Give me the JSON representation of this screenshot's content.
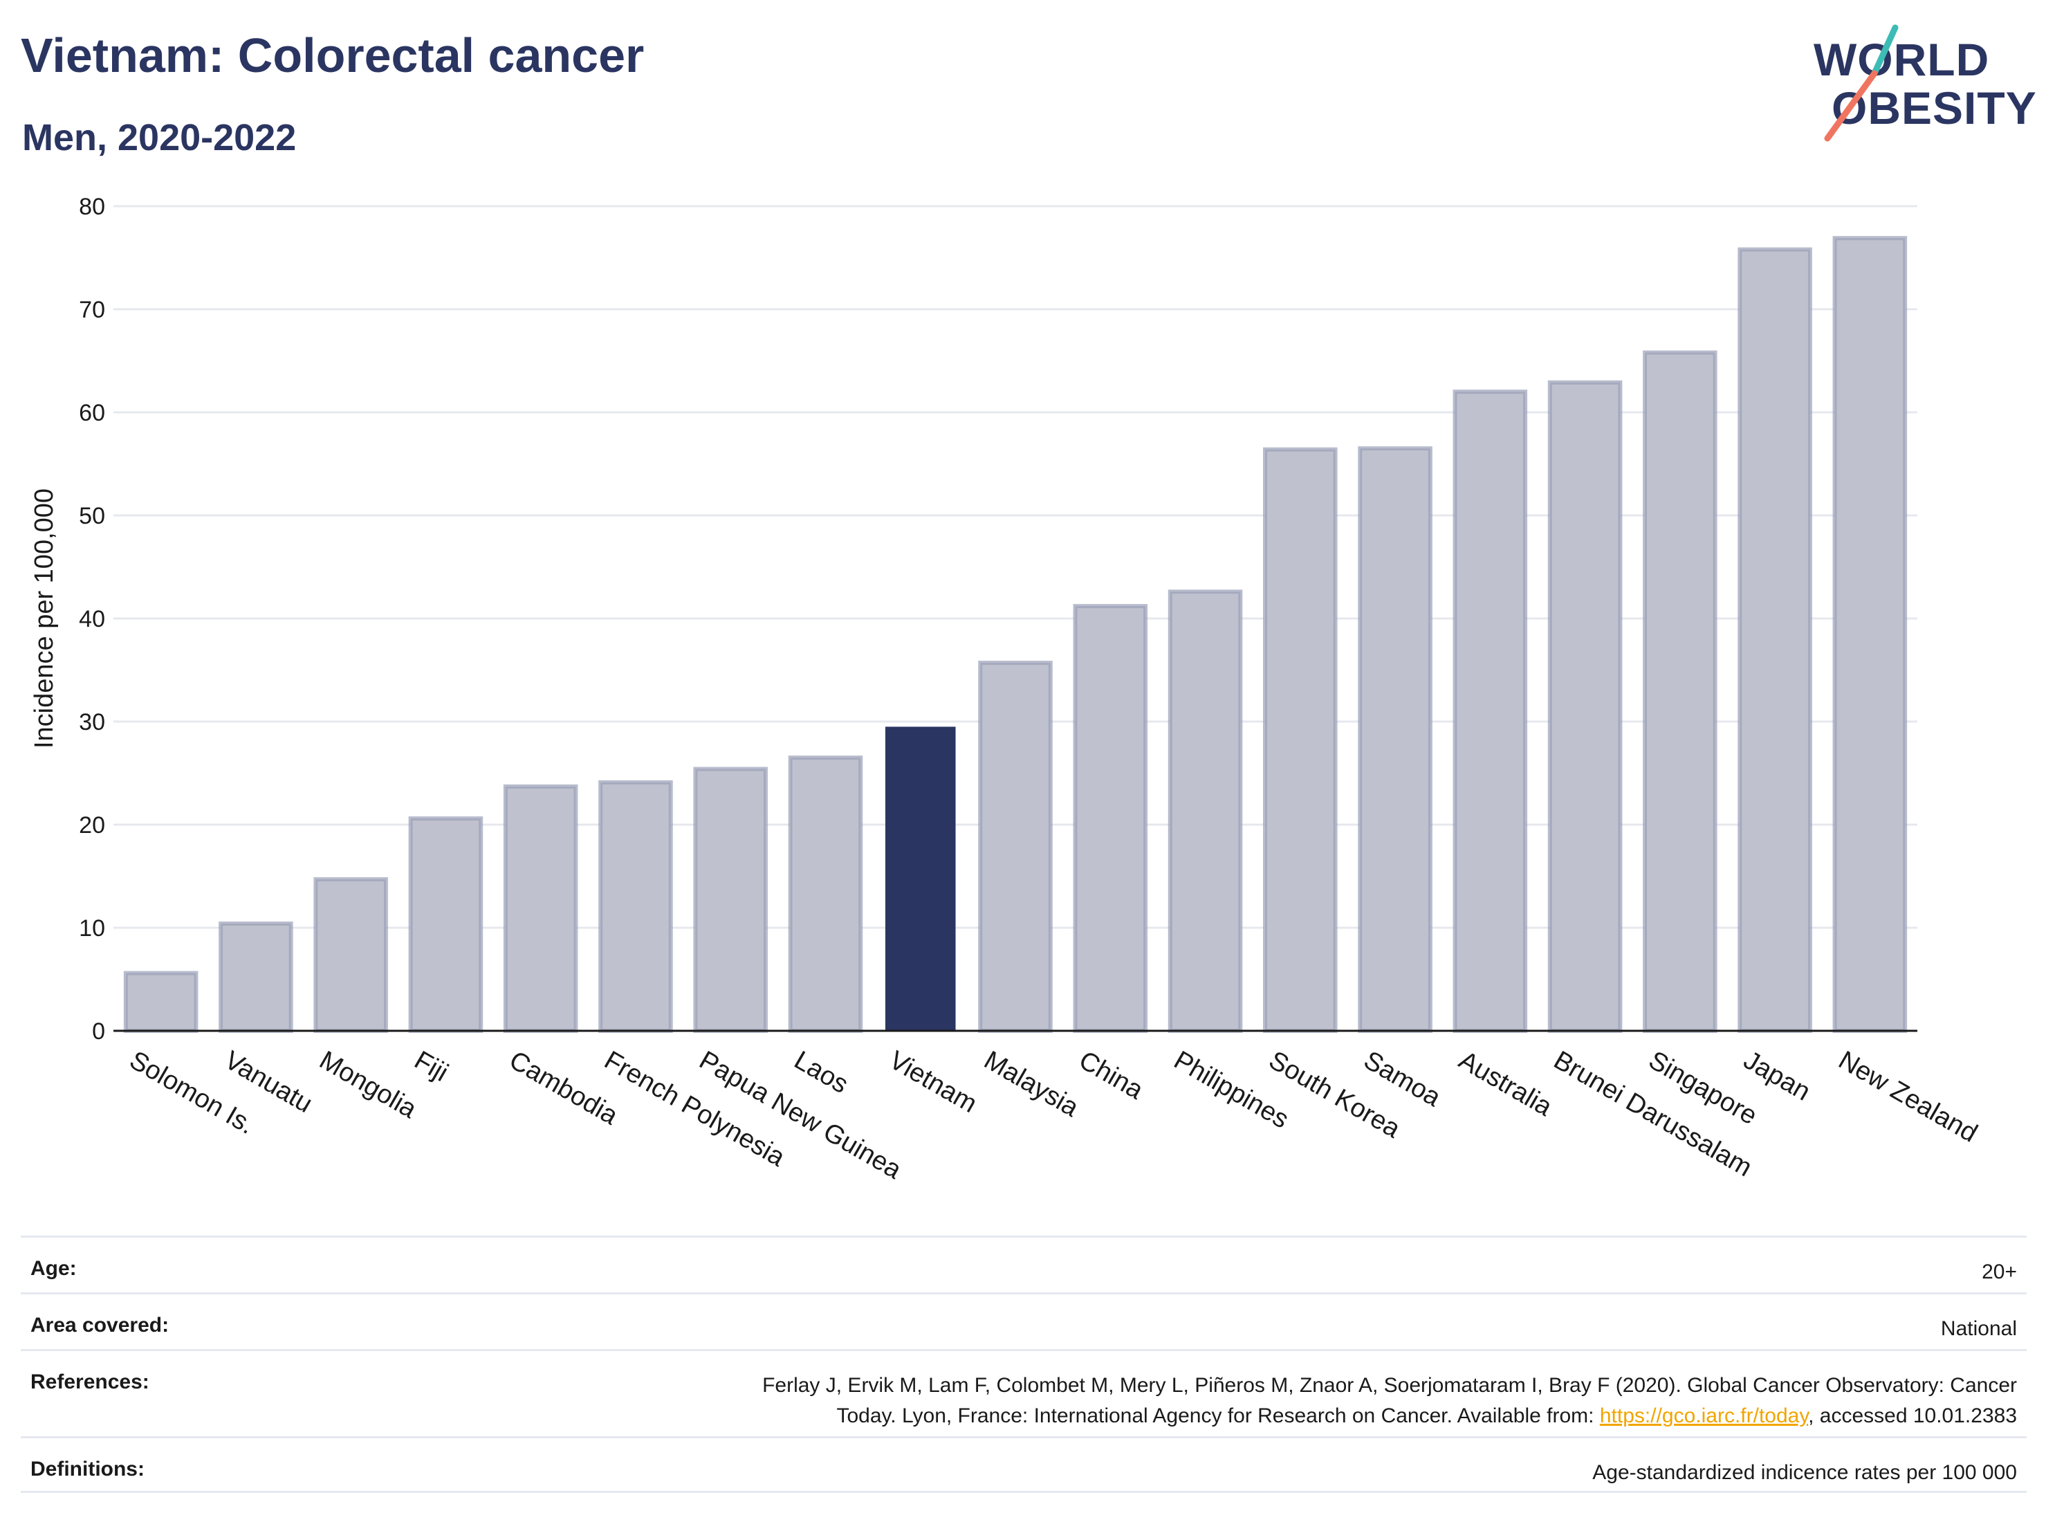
{
  "header": {
    "title": "Vietnam: Colorectal cancer",
    "subtitle": "Men, 2020-2022",
    "logo_line1": "WORLD",
    "logo_line2": "OBESITY"
  },
  "chart_data": {
    "type": "bar",
    "title": "Vietnam: Colorectal cancer",
    "subtitle": "Men, 2020-2022",
    "xlabel": "",
    "ylabel": "Incidence per 100,000",
    "ylim": [
      0,
      80
    ],
    "yticks": [
      0,
      10,
      20,
      30,
      40,
      50,
      60,
      70,
      80
    ],
    "grid": true,
    "highlight": "Vietnam",
    "colors": {
      "default": "#bfc2ce",
      "default_edge": "#9a9fb8",
      "highlight": "#2b3561"
    },
    "categories": [
      "Solomon Is.",
      "Vanuatu",
      "Mongolia",
      "Fiji",
      "Cambodia",
      "French Polynesia",
      "Papua New Guinea",
      "Laos",
      "Vietnam",
      "Malaysia",
      "China",
      "Philippines",
      "South Korea",
      "Samoa",
      "Australia",
      "Brunei Darussalam",
      "Singapore",
      "Japan",
      "New Zealand"
    ],
    "values": [
      5.6,
      10.4,
      14.7,
      20.6,
      23.7,
      24.1,
      25.4,
      26.5,
      29.5,
      35.7,
      41.2,
      42.6,
      56.4,
      56.5,
      62.0,
      62.9,
      65.8,
      75.8,
      76.9
    ]
  },
  "info": {
    "age_label": "Age:",
    "age_value": "20+",
    "area_label": "Area covered:",
    "area_value": "National",
    "ref_label": "References:",
    "ref_text_1": "Ferlay J, Ervik M, Lam F, Colombet M, Mery L, Piñeros M, Znaor A, Soerjomataram I, Bray F (2020). Global Cancer Observatory: Cancer",
    "ref_text_2": "Today. Lyon, France: International Agency for Research on Cancer. Available from: ",
    "ref_link": "https://gco.iarc.fr/today",
    "ref_text_3": ", accessed 10.01.2383",
    "def_label": "Definitions:",
    "def_value": "Age-standardized indicence rates per 100 000"
  }
}
